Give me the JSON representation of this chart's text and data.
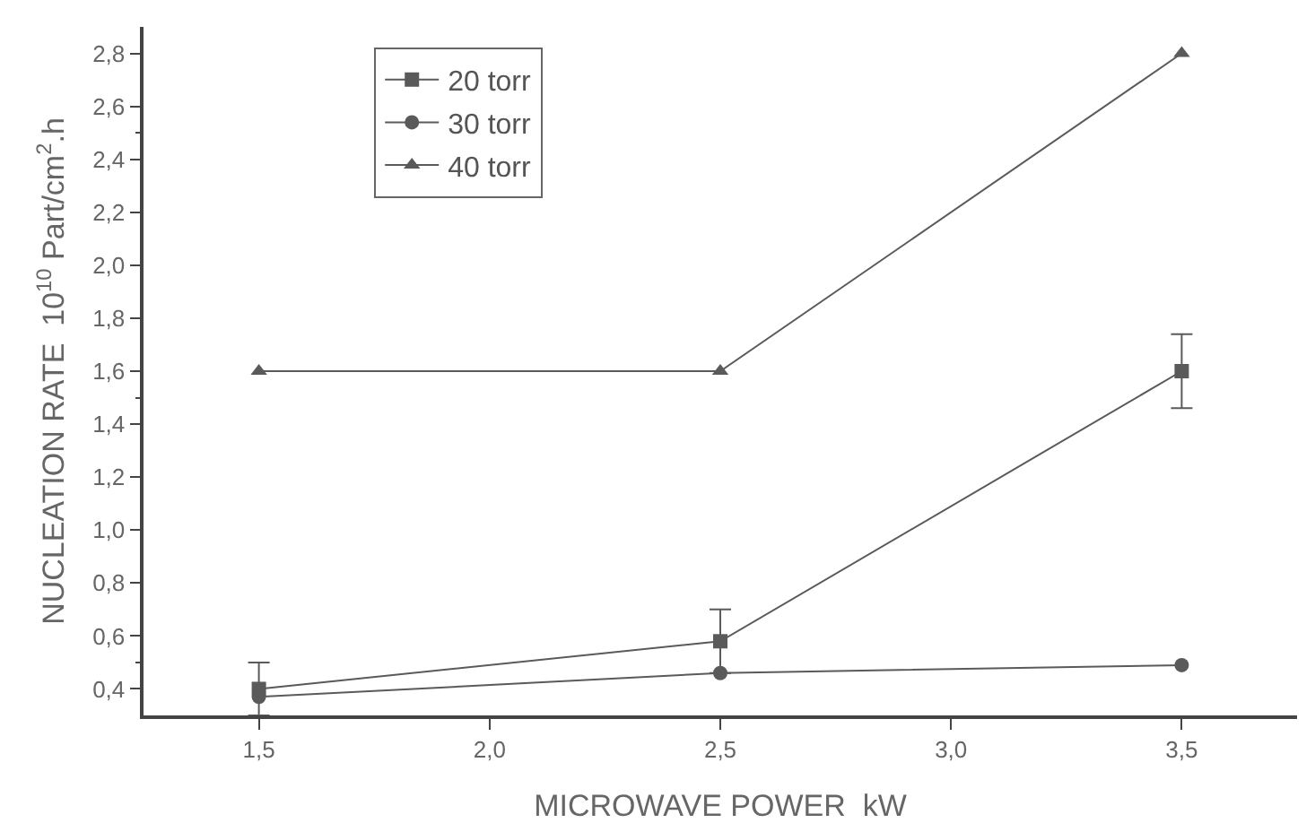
{
  "chart_data": {
    "type": "line",
    "xlabel": "MICROWAVE POWER  kW",
    "ylabel": "NUCLEATION RATE  10$^{10}$ Part/cm$^{2}$.h",
    "x": [
      1.5,
      2.5,
      3.5
    ],
    "series": [
      {
        "name": "20 torr",
        "color": "#5a5a5a",
        "values": [
          0.4,
          0.58,
          1.6
        ],
        "errors": [
          0.1,
          0.12,
          0.14
        ],
        "marker": "square"
      },
      {
        "name": "30 torr",
        "color": "#5a5a5a",
        "values": [
          0.37,
          0.46,
          0.49
        ],
        "marker": "circle"
      },
      {
        "name": "40 torr",
        "color": "#5a5a5a",
        "values": [
          1.6,
          1.6,
          2.8
        ],
        "marker": "triangle"
      }
    ],
    "xlim": [
      1.25,
      3.75
    ],
    "xticks": [
      {
        "value": 1.5,
        "label": "1,5"
      },
      {
        "value": 2.0,
        "label": "2,0"
      },
      {
        "value": 2.5,
        "label": "2,5"
      },
      {
        "value": 3.0,
        "label": "3,0"
      },
      {
        "value": 3.5,
        "label": "3,5"
      }
    ],
    "ylim": [
      0.3,
      2.9
    ],
    "yticks": [
      {
        "value": 0.4,
        "label": "0,4"
      },
      {
        "value": 0.6,
        "label": "0,6"
      },
      {
        "value": 0.8,
        "label": "0,8"
      },
      {
        "value": 1.0,
        "label": "1,0"
      },
      {
        "value": 1.2,
        "label": "1,2"
      },
      {
        "value": 1.4,
        "label": "1,4"
      },
      {
        "value": 1.6,
        "label": "1,6"
      },
      {
        "value": 1.8,
        "label": "1,8"
      },
      {
        "value": 2.0,
        "label": "2,0"
      },
      {
        "value": 2.2,
        "label": "2,2"
      },
      {
        "value": 2.4,
        "label": "2,4"
      },
      {
        "value": 2.6,
        "label": "2,6"
      },
      {
        "value": 2.8,
        "label": "2,8"
      }
    ],
    "grid": false,
    "legend": "top left",
    "line_style": "solid"
  }
}
